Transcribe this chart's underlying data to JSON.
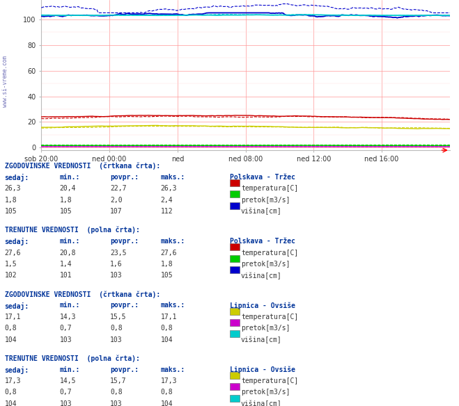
{
  "title": "Polskava - Tržec & Lipnica - Ovsiše",
  "title_color": "#0000cc",
  "bg_color": "#ffffff",
  "plot_bg_color": "#ffffff",
  "x_labels": [
    "sob 20:00",
    "ned 00:00",
    "ned",
    "ned 08:00",
    "ned 12:00",
    "ned 16:00"
  ],
  "y_ticks": [
    0,
    20,
    40,
    60,
    80,
    100
  ],
  "y_lim": [
    -2,
    115
  ],
  "watermark": "www.si-vreme.com",
  "n_points": 288,
  "polskava_trzec_hist": {
    "temp": {
      "sedaj": 26.3,
      "min": 20.4,
      "povpr": 22.7,
      "maks": 26.3
    },
    "pretok": {
      "sedaj": 1.8,
      "min": 1.8,
      "povpr": 2.0,
      "maks": 2.4
    },
    "visina": {
      "sedaj": 105,
      "min": 105,
      "povpr": 107,
      "maks": 112
    }
  },
  "polskava_trzec_curr": {
    "temp": {
      "sedaj": 27.6,
      "min": 20.8,
      "povpr": 23.5,
      "maks": 27.6
    },
    "pretok": {
      "sedaj": 1.5,
      "min": 1.4,
      "povpr": 1.6,
      "maks": 1.8
    },
    "visina": {
      "sedaj": 102,
      "min": 101,
      "povpr": 103,
      "maks": 105
    }
  },
  "lipnica_ovsise_hist": {
    "temp": {
      "sedaj": 17.1,
      "min": 14.3,
      "povpr": 15.5,
      "maks": 17.1
    },
    "pretok": {
      "sedaj": 0.8,
      "min": 0.7,
      "povpr": 0.8,
      "maks": 0.8
    },
    "visina": {
      "sedaj": 104,
      "min": 103,
      "povpr": 103,
      "maks": 104
    }
  },
  "lipnica_ovsise_curr": {
    "temp": {
      "sedaj": 17.3,
      "min": 14.5,
      "povpr": 15.7,
      "maks": 17.3
    },
    "pretok": {
      "sedaj": 0.8,
      "min": 0.7,
      "povpr": 0.8,
      "maks": 0.8
    },
    "visina": {
      "sedaj": 104,
      "min": 103,
      "povpr": 103,
      "maks": 104
    }
  }
}
